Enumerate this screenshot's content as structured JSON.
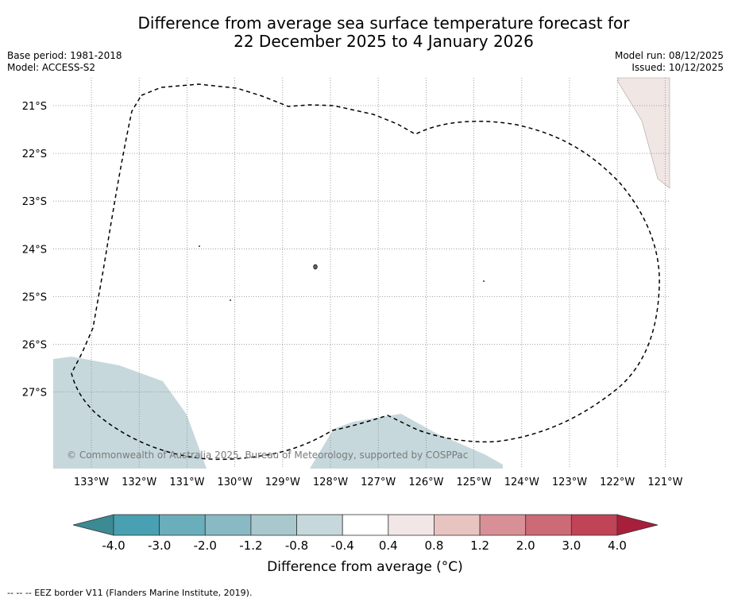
{
  "title": {
    "line1": "Difference from average sea surface temperature forecast for",
    "line2": "22 December 2025 to 4 January 2026"
  },
  "meta_left": {
    "base_period": "Base period: 1981-2018",
    "model": "Model: ACCESS-S2"
  },
  "meta_right": {
    "model_run": "Model run: 08/12/2025",
    "issued": "Issued: 10/12/2025"
  },
  "map": {
    "lon_labels": [
      "133°W",
      "132°W",
      "131°W",
      "130°W",
      "129°W",
      "128°W",
      "127°W",
      "126°W",
      "125°W",
      "124°W",
      "123°W",
      "122°W",
      "121°W"
    ],
    "lat_labels": [
      "21°S",
      "22°S",
      "23°S",
      "24°S",
      "25°S",
      "26°S",
      "27°S"
    ],
    "copyright": "© Commonwealth of Australia 2025, Bureau of Meteorology, supported by COSPPac"
  },
  "colorbar": {
    "ticks": [
      "-4.0",
      "-3.0",
      "-2.0",
      "-1.2",
      "-0.8",
      "-0.4",
      "0.4",
      "0.8",
      "1.2",
      "2.0",
      "3.0",
      "4.0"
    ],
    "colors": [
      "#48a0b2",
      "#6aaebb",
      "#89b9c3",
      "#a9c8cd",
      "#c6d8dc",
      "#ffffff",
      "#f3e6e6",
      "#e8c4c1",
      "#d98f96",
      "#cc6a75",
      "#c04455"
    ],
    "low_extend_color": "#3c8a94",
    "high_extend_color": "#a81f3c",
    "title": "Difference from average (°C)"
  },
  "footnote": "-- -- -- EEZ border V11 (Flanders Marine Institute, 2019)."
}
